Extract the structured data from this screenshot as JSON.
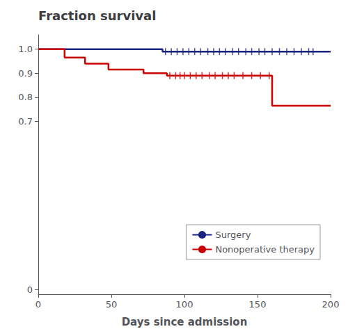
{
  "chart_data": {
    "type": "step",
    "title": "Fraction survival",
    "xlabel": "Days since admission",
    "xlim": [
      0,
      200
    ],
    "xticks": [
      0,
      50,
      100,
      150,
      200
    ],
    "ylim": [
      -0.02,
      1.06
    ],
    "yticks": [
      0,
      0.7,
      0.8,
      0.9,
      {
        "value": 1.0,
        "label": "1.0"
      }
    ],
    "grid": false,
    "legend": "lower right",
    "series": [
      {
        "name": "Surgery",
        "color": "#1a237e",
        "x": [
          0,
          85,
          85,
          200
        ],
        "values": [
          1.0,
          1.0,
          0.99,
          0.99
        ],
        "censor_x": [
          87,
          91,
          95,
          99,
          103,
          107,
          111,
          116,
          120,
          124,
          128,
          133,
          137,
          142,
          146,
          151,
          155,
          160,
          165,
          170,
          175,
          180,
          185,
          188
        ],
        "censor_y": 0.99
      },
      {
        "name": "Nonoperative therapy",
        "color": "#cc0000",
        "x": [
          0,
          18,
          18,
          32,
          32,
          48,
          48,
          72,
          72,
          88,
          88,
          160,
          160,
          170,
          170,
          185,
          185,
          200
        ],
        "values": [
          1.0,
          1.0,
          0.965,
          0.965,
          0.94,
          0.94,
          0.915,
          0.915,
          0.9,
          0.9,
          0.89,
          0.89,
          0.765,
          0.765,
          0.765,
          0.765,
          0.765,
          0.765
        ],
        "censor_x": [
          90,
          94,
          97,
          100,
          104,
          108,
          112,
          117,
          121,
          126,
          130,
          134,
          140,
          146,
          152,
          158
        ],
        "censor_y": 0.89
      }
    ]
  }
}
